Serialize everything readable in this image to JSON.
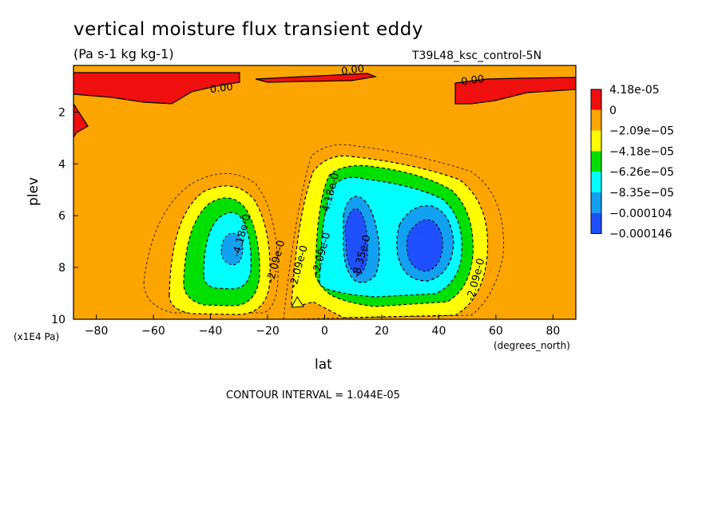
{
  "chart_data": {
    "type": "heatmap",
    "title": "vertical moisture flux transient eddy",
    "subtitle": "(Pa s-1 kg kg-1)",
    "run_label": "T39L48_ksc_control-5N",
    "xlabel": "lat",
    "xunit": "(degrees_north)",
    "ylabel": "plev",
    "yunit": "(x1E4 Pa)",
    "xlim": [
      -88,
      88
    ],
    "ylim": [
      10,
      0.2
    ],
    "x_ticks": [
      -80,
      -60,
      -40,
      -20,
      0,
      20,
      40,
      60,
      80
    ],
    "y_ticks": [
      2,
      4,
      6,
      8,
      10
    ],
    "contour_interval_text": "CONTOUR INTERVAL = 1.044E-05",
    "colorbar": [
      {
        "label": "4.18e-05",
        "color": "#f00f0f"
      },
      {
        "label": "0",
        "color": "#fca500"
      },
      {
        "label": "−2.09e−05",
        "color": "#ffff00"
      },
      {
        "label": "−4.18e−05",
        "color": "#00e000"
      },
      {
        "label": "−6.26e−05",
        "color": "#00ffff"
      },
      {
        "label": "−8.35e−05",
        "color": "#12a0f0"
      },
      {
        "label": "−0.000104",
        "color": "#1e50ff"
      },
      {
        "label": "−0.000146",
        "color": "#1e50ff"
      }
    ],
    "contour_labels": [
      {
        "text": "0.00",
        "lat": -36,
        "plev": 1.2
      },
      {
        "text": "0.00",
        "lat": 10,
        "plev": 0.5
      },
      {
        "text": "0.00",
        "lat": 52,
        "plev": 0.9
      },
      {
        "text": "-4.18e-0",
        "lat": -28,
        "plev": 6.8
      },
      {
        "text": "-2.09e-0",
        "lat": -16,
        "plev": 7.8
      },
      {
        "text": "-2.09e-0",
        "lat": -8,
        "plev": 8.0
      },
      {
        "text": "-2.09e-0",
        "lat": 0,
        "plev": 7.5
      },
      {
        "text": "-4.18e-0",
        "lat": 3,
        "plev": 5.2
      },
      {
        "text": "-8.35e-0",
        "lat": 14,
        "plev": 7.6
      },
      {
        "text": "-2.09e-0",
        "lat": 54,
        "plev": 8.5
      }
    ]
  }
}
